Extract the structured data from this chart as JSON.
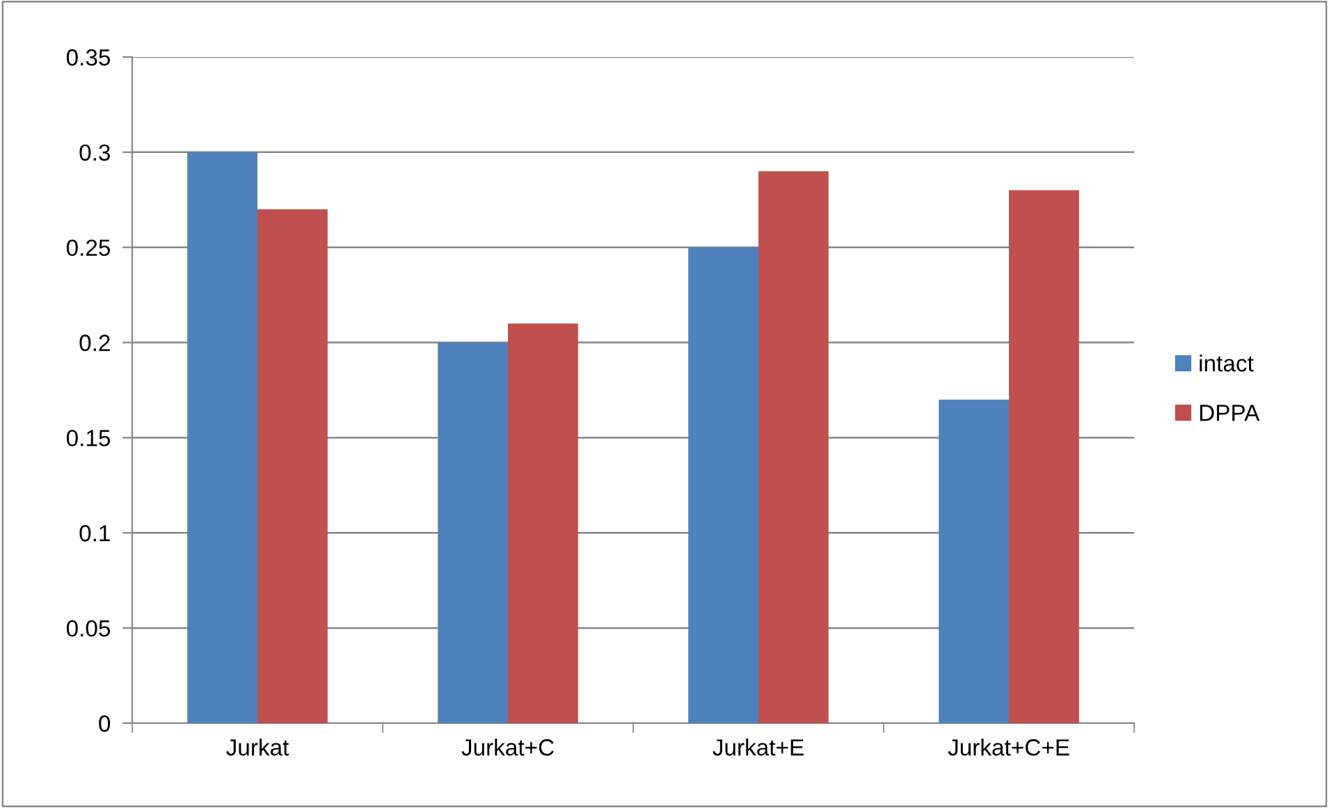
{
  "chart_data": {
    "type": "bar",
    "categories": [
      "Jurkat",
      "Jurkat+C",
      "Jurkat+E",
      "Jurkat+C+E"
    ],
    "series": [
      {
        "name": "intact",
        "color": "#4f81bd",
        "values": [
          0.3,
          0.2,
          0.25,
          0.17
        ]
      },
      {
        "name": "DPPA",
        "color": "#c0504d",
        "values": [
          0.27,
          0.21,
          0.29,
          0.28
        ]
      }
    ],
    "ylim": [
      0,
      0.35
    ],
    "yticks": [
      0,
      0.05,
      0.1,
      0.15,
      0.2,
      0.25,
      0.3,
      0.35
    ],
    "grid": "y",
    "legend": "right"
  }
}
